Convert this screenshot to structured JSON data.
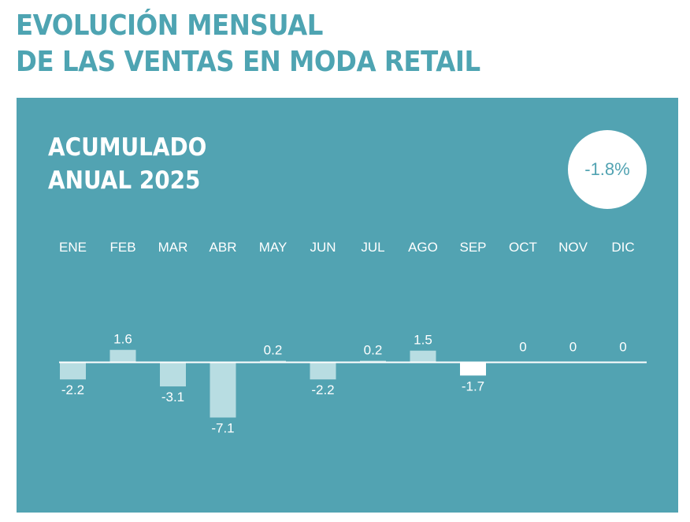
{
  "header": {
    "title_line1": "EVOLUCIÓN MENSUAL",
    "title_line2": "DE LAS VENTAS EN MODA RETAIL"
  },
  "panel": {
    "subtitle_line1": "ACUMULADO",
    "subtitle_line2": "ANUAL 2025",
    "total_label": "-1.8%"
  },
  "colors": {
    "panel_bg": "#52a3b2",
    "bar_default": "#b8dde2",
    "bar_highlight": "#ffffff",
    "text": "#ffffff"
  },
  "chart_data": {
    "type": "bar",
    "categories": [
      "ENE",
      "FEB",
      "MAR",
      "ABR",
      "MAY",
      "JUN",
      "JUL",
      "AGO",
      "SEP",
      "OCT",
      "NOV",
      "DIC"
    ],
    "values": [
      -2.2,
      1.6,
      -3.1,
      -7.1,
      0.2,
      -2.2,
      0.2,
      1.5,
      -1.7,
      0,
      0,
      0
    ],
    "value_labels": [
      "-2.2",
      "1.6",
      "-3.1",
      "-7.1",
      "0.2",
      "-2.2",
      "0.2",
      "1.5",
      "-1.7",
      "0",
      "0",
      "0"
    ],
    "highlight_index": 8,
    "ylim": [
      -7.1,
      1.6
    ],
    "grid": false,
    "legend": "none"
  }
}
